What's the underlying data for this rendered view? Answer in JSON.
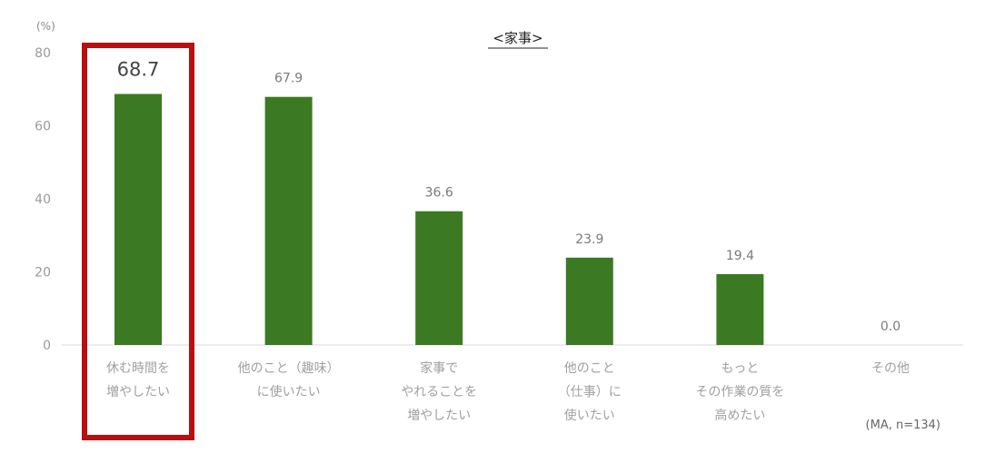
{
  "chart_data": {
    "type": "bar",
    "title": "<家事>",
    "unit_label": "(%)",
    "note": "(MA, n=134)",
    "ylim": [
      0,
      80
    ],
    "yticks": [
      0,
      20,
      40,
      60,
      80
    ],
    "grid": false,
    "categories": [
      [
        "休む時間を",
        "増やしたい"
      ],
      [
        "他のこと（趣味）",
        "に使いたい"
      ],
      [
        "家事で",
        "やれることを",
        "増やしたい"
      ],
      [
        "他のこと",
        "（仕事）に",
        "使いたい"
      ],
      [
        "もっと",
        "その作業の質を",
        "高めたい"
      ],
      [
        "その他"
      ]
    ],
    "values": [
      68.7,
      67.9,
      36.6,
      23.9,
      19.4,
      0.0
    ],
    "value_labels": [
      "68.7",
      "67.9",
      "36.6",
      "23.9",
      "19.4",
      "0.0"
    ],
    "highlight_index": 0,
    "colors": {
      "bar": "#3b7a22",
      "highlight_box": "#b80f0f",
      "axis": "#d9d9d9"
    }
  }
}
